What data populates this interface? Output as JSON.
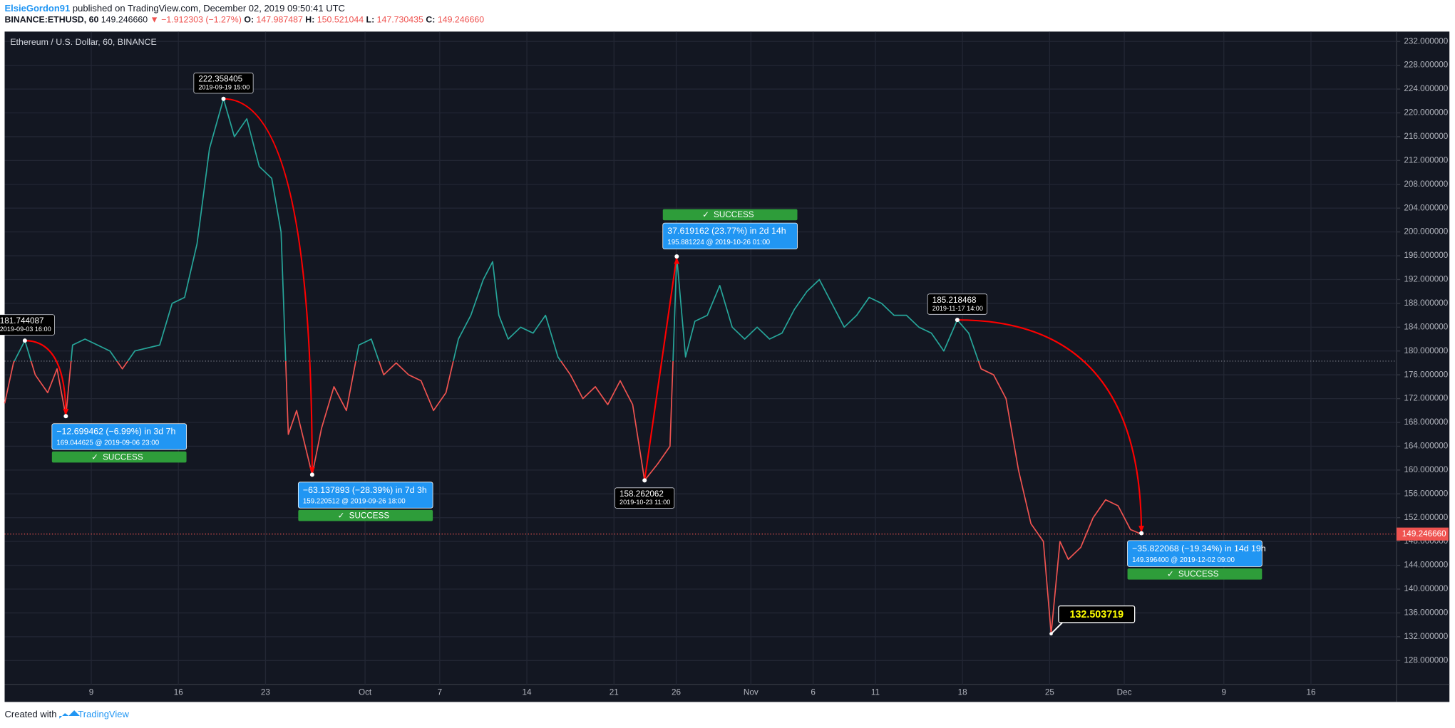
{
  "header": {
    "author": "ElsieGordon91",
    "published": "published on TradingView.com, December 02, 2019 09:50:41 UTC",
    "quote": [
      {
        "text": "BINANCE:ETHUSD, 60",
        "bold": true
      },
      {
        "text": "149.246660"
      },
      {
        "text": "▼ −1.912303 (−1.27%)",
        "color": "#ef5350"
      },
      {
        "text": "O:",
        "bold": true
      },
      {
        "text": "147.987487",
        "color": "#ef5350"
      },
      {
        "text": "H:",
        "bold": true
      },
      {
        "text": "150.521044",
        "color": "#ef5350"
      },
      {
        "text": "L:",
        "bold": true
      },
      {
        "text": "147.730435",
        "color": "#ef5350"
      },
      {
        "text": "C:",
        "bold": true
      },
      {
        "text": "149.246660",
        "color": "#ef5350"
      }
    ]
  },
  "chart_data": {
    "type": "line",
    "title": "Ethereum / U.S. Dollar, 60, BINANCE",
    "x": [
      "2019-09-02 01:00",
      "2019-09-02 18:00",
      "2019-09-03 16:00",
      "2019-09-04 12:00",
      "2019-09-05 12:00",
      "2019-09-06 06:00",
      "2019-09-06 23:00",
      "2019-09-07 12:00",
      "2019-09-08 12:00",
      "2019-09-10 12:00",
      "2019-09-11 12:00",
      "2019-09-12 12:00",
      "2019-09-14 12:00",
      "2019-09-15 12:00",
      "2019-09-16 12:00",
      "2019-09-17 12:00",
      "2019-09-18 12:00",
      "2019-09-19 15:00",
      "2019-09-20 12:00",
      "2019-09-21 12:00",
      "2019-09-22 12:00",
      "2019-09-23 12:00",
      "2019-09-24 06:00",
      "2019-09-24 20:00",
      "2019-09-25 12:00",
      "2019-09-26 18:00",
      "2019-09-27 12:00",
      "2019-09-28 12:00",
      "2019-09-29 12:00",
      "2019-09-30 12:00",
      "2019-10-01 12:00",
      "2019-10-02 12:00",
      "2019-10-03 12:00",
      "2019-10-04 12:00",
      "2019-10-05 12:00",
      "2019-10-06 12:00",
      "2019-10-07 12:00",
      "2019-10-08 12:00",
      "2019-10-09 12:00",
      "2019-10-10 12:00",
      "2019-10-11 06:00",
      "2019-10-11 18:00",
      "2019-10-12 12:00",
      "2019-10-13 12:00",
      "2019-10-14 12:00",
      "2019-10-15 12:00",
      "2019-10-16 12:00",
      "2019-10-17 12:00",
      "2019-10-18 12:00",
      "2019-10-19 12:00",
      "2019-10-20 12:00",
      "2019-10-21 12:00",
      "2019-10-22 12:00",
      "2019-10-23 11:00",
      "2019-10-24 12:00",
      "2019-10-25 12:00",
      "2019-10-26 01:00",
      "2019-10-26 18:00",
      "2019-10-27 12:00",
      "2019-10-28 12:00",
      "2019-10-29 12:00",
      "2019-10-30 12:00",
      "2019-10-31 12:00",
      "2019-11-01 12:00",
      "2019-11-02 12:00",
      "2019-11-03 12:00",
      "2019-11-04 12:00",
      "2019-11-05 12:00",
      "2019-11-06 12:00",
      "2019-11-07 12:00",
      "2019-11-08 12:00",
      "2019-11-09 12:00",
      "2019-11-10 12:00",
      "2019-11-11 12:00",
      "2019-11-12 12:00",
      "2019-11-13 12:00",
      "2019-11-14 12:00",
      "2019-11-15 12:00",
      "2019-11-16 12:00",
      "2019-11-17 14:00",
      "2019-11-18 12:00",
      "2019-11-19 12:00",
      "2019-11-20 12:00",
      "2019-11-21 12:00",
      "2019-11-22 12:00",
      "2019-11-23 12:00",
      "2019-11-24 12:00",
      "2019-11-25 03:00",
      "2019-11-25 20:00",
      "2019-11-26 12:00",
      "2019-11-27 12:00",
      "2019-11-28 12:00",
      "2019-11-29 12:00",
      "2019-11-30 12:00",
      "2019-12-01 12:00",
      "2019-12-02 09:00"
    ],
    "series": [
      {
        "name": "ETHUSD",
        "values": [
          171.2,
          178,
          181.744087,
          176,
          173,
          177,
          169.044625,
          181,
          182,
          180,
          177,
          180,
          181,
          188,
          189,
          198,
          214,
          222.358405,
          216,
          219,
          211,
          209,
          200,
          166,
          170,
          159.220512,
          167,
          174,
          170,
          181,
          182,
          176,
          178,
          176,
          175,
          170,
          173,
          182,
          186,
          192,
          195,
          186,
          182,
          184,
          183,
          186,
          179,
          176,
          172,
          174,
          171,
          175,
          171,
          158.262062,
          161,
          164,
          195.881224,
          179,
          185,
          186,
          191,
          184,
          182,
          184,
          182,
          183,
          187,
          190,
          192,
          188,
          184,
          186,
          189,
          188,
          186,
          186,
          184,
          183,
          180,
          185.218468,
          183,
          177,
          176,
          172,
          160,
          151,
          148,
          132.503719,
          148,
          145,
          147,
          152,
          155,
          154,
          150,
          149.24666
        ]
      }
    ],
    "up_color": "#26a69a",
    "down_color": "#ef5350",
    "baseline": 178.3,
    "xlim": [
      "2019-09-02 01:00",
      "2019-12-22 21:00"
    ],
    "ylim": [
      124,
      233.5
    ],
    "xticks": [
      {
        "value": "2019-09-09",
        "label": "9"
      },
      {
        "value": "2019-09-16",
        "label": "16"
      },
      {
        "value": "2019-09-23",
        "label": "23"
      },
      {
        "value": "2019-10-01",
        "label": "Oct"
      },
      {
        "value": "2019-10-07",
        "label": "7"
      },
      {
        "value": "2019-10-14",
        "label": "14"
      },
      {
        "value": "2019-10-21",
        "label": "21"
      },
      {
        "value": "2019-10-26",
        "label": "26"
      },
      {
        "value": "2019-11-01",
        "label": "Nov"
      },
      {
        "value": "2019-11-06",
        "label": "6"
      },
      {
        "value": "2019-11-11",
        "label": "11"
      },
      {
        "value": "2019-11-18",
        "label": "18"
      },
      {
        "value": "2019-11-25",
        "label": "25"
      },
      {
        "value": "2019-12-01",
        "label": "Dec"
      },
      {
        "value": "2019-12-09",
        "label": "9"
      },
      {
        "value": "2019-12-16",
        "label": "16"
      }
    ],
    "yticks": [
      {
        "value": 128,
        "label": "128.000000"
      },
      {
        "value": 132,
        "label": "132.000000"
      },
      {
        "value": 136,
        "label": "136.000000"
      },
      {
        "value": 140,
        "label": "140.000000"
      },
      {
        "value": 144,
        "label": "144.000000"
      },
      {
        "value": 148,
        "label": "148.000000"
      },
      {
        "value": 152,
        "label": "152.000000"
      },
      {
        "value": 156,
        "label": "156.000000"
      },
      {
        "value": 160,
        "label": "160.000000"
      },
      {
        "value": 164,
        "label": "164.000000"
      },
      {
        "value": 168,
        "label": "168.000000"
      },
      {
        "value": 172,
        "label": "172.000000"
      },
      {
        "value": 176,
        "label": "176.000000"
      },
      {
        "value": 180,
        "label": "180.000000"
      },
      {
        "value": 184,
        "label": "184.000000"
      },
      {
        "value": 188,
        "label": "188.000000"
      },
      {
        "value": 192,
        "label": "192.000000"
      },
      {
        "value": 196,
        "label": "196.000000"
      },
      {
        "value": 200,
        "label": "200.000000"
      },
      {
        "value": 204,
        "label": "204.000000"
      },
      {
        "value": 208,
        "label": "208.000000"
      },
      {
        "value": 212,
        "label": "212.000000"
      },
      {
        "value": 216,
        "label": "216.000000"
      },
      {
        "value": 220,
        "label": "220.000000"
      },
      {
        "value": 224,
        "label": "224.000000"
      },
      {
        "value": 228,
        "label": "228.000000"
      },
      {
        "value": 232,
        "label": "232.000000"
      }
    ],
    "grid": true,
    "last_price": {
      "value": 149.24666,
      "label": "149.246660"
    },
    "tags": [
      {
        "price": 181.744087,
        "time": "2019-09-03 16:00",
        "side": "above"
      },
      {
        "price": 222.358405,
        "time": "2019-09-19 15:00",
        "side": "above"
      },
      {
        "price": 158.262062,
        "time": "2019-10-23 11:00",
        "side": "below"
      },
      {
        "price": 185.218468,
        "time": "2019-11-17 14:00",
        "side": "above"
      }
    ],
    "measures": [
      {
        "text": "−12.699462 (−6.99%) in 3d 7h",
        "detail": "169.044625 @ 2019-09-06  23:00",
        "status": "SUCCESS",
        "from_price": 181.744087,
        "from_time": "2019-09-03 16:00",
        "to_price": 169.044625,
        "to_time": "2019-09-06 23:00"
      },
      {
        "text": "−63.137893 (−28.39%) in 7d 3h",
        "detail": "159.220512 @ 2019-09-26  18:00",
        "status": "SUCCESS",
        "from_price": 222.358405,
        "from_time": "2019-09-19 15:00",
        "to_price": 159.220512,
        "to_time": "2019-09-26 18:00"
      },
      {
        "text": "37.619162 (23.77%) in 2d 14h",
        "detail": "195.881224 @ 2019-10-26  01:00",
        "status": "SUCCESS",
        "from_price": 158.262062,
        "from_time": "2019-10-23 11:00",
        "to_price": 195.881224,
        "to_time": "2019-10-26 01:00"
      },
      {
        "text": "−35.822068 (−19.34%) in 14d 19h",
        "detail": "149.396400 @ 2019-12-02  09:00",
        "status": "SUCCESS",
        "from_price": 185.218468,
        "from_time": "2019-11-17 14:00",
        "to_price": 149.3964,
        "to_time": "2019-12-02 09:00"
      }
    ],
    "low_callout": {
      "price": 132.503719,
      "time": "2019-11-25 03:00"
    }
  },
  "footer": {
    "created": "Created with",
    "brand": "TradingView"
  }
}
